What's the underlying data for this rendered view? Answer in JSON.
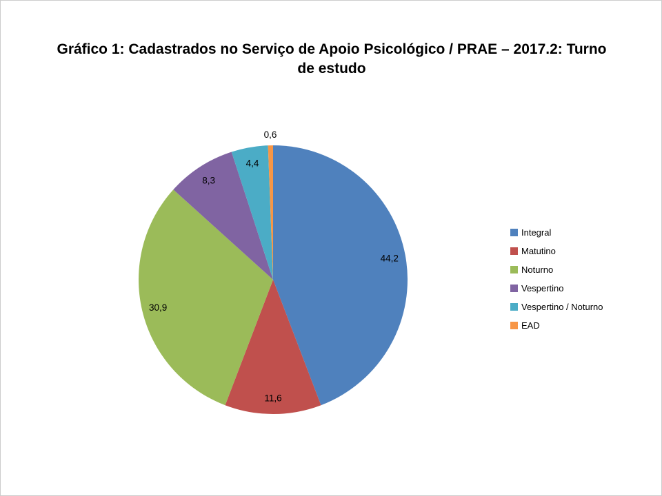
{
  "chart_data": {
    "type": "pie",
    "title": "Gráfico 1: Cadastrados no Serviço de Apoio Psicológico / PRAE – 2017.2: Turno de estudo",
    "categories": [
      "Integral",
      "Matutino",
      "Noturno",
      "Vespertino",
      "Vespertino / Noturno",
      "EAD"
    ],
    "values": [
      44.2,
      11.6,
      30.9,
      8.3,
      4.4,
      0.6
    ],
    "value_labels": [
      "44,2",
      "11,6",
      "30,9",
      "8,3",
      "4,4",
      "0,6"
    ],
    "colors": [
      "#4F81BD",
      "#C0504D",
      "#9BBB59",
      "#8064A2",
      "#4BACC6",
      "#F79646"
    ],
    "label_color": "#000000",
    "start_angle_deg": 0,
    "direction": "clockwise",
    "legend_position": "right",
    "grid": "off"
  }
}
